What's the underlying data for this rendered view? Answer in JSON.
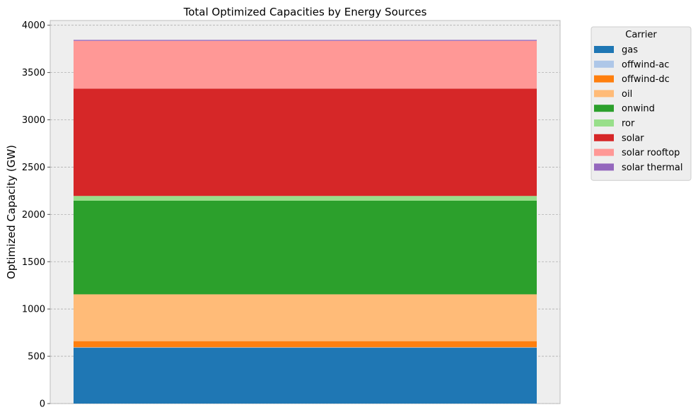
{
  "chart_data": {
    "type": "bar",
    "stacked": true,
    "title": "Total Optimized Capacities by Energy Sources",
    "xlabel": "",
    "ylabel": "Optimized Capacity (GW)",
    "ylim": [
      0,
      4050
    ],
    "yticks": [
      0,
      500,
      1000,
      1500,
      2000,
      2500,
      3000,
      3500,
      4000
    ],
    "grid": true,
    "legend_position": "outside-right",
    "legend_title": "Carrier",
    "categories": [
      ""
    ],
    "series": [
      {
        "name": "gas",
        "values": [
          590
        ],
        "color": "#1f77b4"
      },
      {
        "name": "offwind-ac",
        "values": [
          5
        ],
        "color": "#aec7e8"
      },
      {
        "name": "offwind-dc",
        "values": [
          65
        ],
        "color": "#ff7f0e"
      },
      {
        "name": "oil",
        "values": [
          495
        ],
        "color": "#ffbb78"
      },
      {
        "name": "onwind",
        "values": [
          990
        ],
        "color": "#2ca02c"
      },
      {
        "name": "ror",
        "values": [
          50
        ],
        "color": "#98df8a"
      },
      {
        "name": "solar",
        "values": [
          1135
        ],
        "color": "#d62728"
      },
      {
        "name": "solar rooftop",
        "values": [
          505
        ],
        "color": "#ff9896"
      },
      {
        "name": "solar thermal",
        "values": [
          10
        ],
        "color": "#9467bd"
      }
    ]
  }
}
